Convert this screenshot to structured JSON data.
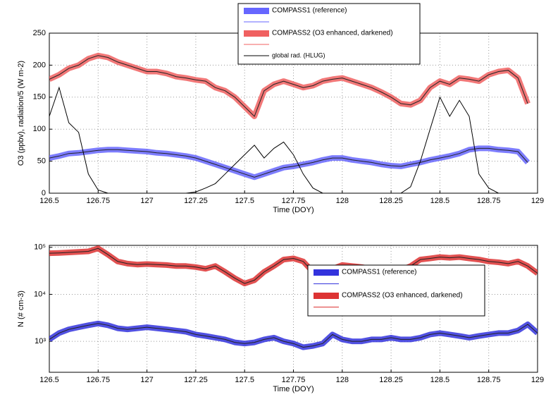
{
  "chart_data": [
    {
      "type": "line",
      "x_label": "Time (DOY)",
      "y_label": "O3 (ppbv), radiation/5 (W m-2)",
      "xlim": [
        126.5,
        129
      ],
      "xticks": [
        126.5,
        126.75,
        127,
        127.25,
        127.5,
        127.75,
        128,
        128.25,
        128.5,
        128.75,
        129
      ],
      "ylim": [
        0,
        250
      ],
      "yticks": [
        0,
        50,
        100,
        150,
        200,
        250
      ],
      "grid": true,
      "legend": "top-center",
      "x": [
        126.5,
        126.55,
        126.6,
        126.65,
        126.7,
        126.75,
        126.8,
        126.85,
        126.9,
        126.95,
        127,
        127.05,
        127.1,
        127.15,
        127.2,
        127.25,
        127.3,
        127.35,
        127.4,
        127.45,
        127.5,
        127.55,
        127.6,
        127.65,
        127.7,
        127.75,
        127.8,
        127.85,
        127.9,
        127.95,
        128,
        128.05,
        128.1,
        128.15,
        128.2,
        128.25,
        128.3,
        128.35,
        128.4,
        128.45,
        128.5,
        128.55,
        128.6,
        128.65,
        128.7,
        128.75,
        128.8,
        128.85,
        128.9,
        128.95
      ],
      "series": [
        {
          "name": "COMPASS1 (reference)",
          "color": "#6666ff",
          "style": "band",
          "values": [
            55,
            58,
            62,
            63,
            65,
            67,
            68,
            68,
            67,
            66,
            65,
            63,
            62,
            60,
            58,
            55,
            50,
            45,
            40,
            35,
            30,
            25,
            30,
            35,
            40,
            42,
            45,
            48,
            52,
            55,
            55,
            52,
            50,
            48,
            45,
            43,
            42,
            45,
            48,
            52,
            55,
            58,
            62,
            68,
            70,
            70,
            68,
            67,
            65,
            48
          ]
        },
        {
          "name": "COMPASS2 (O3 enhanced, darkened)",
          "color": "#f06060",
          "style": "band",
          "values": [
            178,
            185,
            195,
            200,
            210,
            215,
            212,
            205,
            200,
            195,
            190,
            190,
            187,
            182,
            180,
            177,
            175,
            165,
            160,
            150,
            135,
            120,
            160,
            170,
            175,
            170,
            165,
            168,
            175,
            178,
            180,
            175,
            170,
            165,
            158,
            150,
            140,
            138,
            145,
            165,
            175,
            170,
            180,
            178,
            175,
            185,
            190,
            192,
            180,
            140
          ]
        },
        {
          "name": "global rad. (HLUG)",
          "color": "#000000",
          "style": "line",
          "values": [
            120,
            165,
            110,
            95,
            30,
            5,
            0,
            0,
            0,
            0,
            0,
            0,
            0,
            0,
            0,
            2,
            8,
            15,
            30,
            45,
            60,
            75,
            55,
            70,
            80,
            60,
            30,
            8,
            0,
            0,
            0,
            0,
            0,
            0,
            0,
            0,
            0,
            10,
            50,
            100,
            150,
            120,
            145,
            120,
            30,
            8,
            0,
            0,
            0,
            0
          ]
        }
      ]
    },
    {
      "type": "line",
      "x_label": "Time (DOY)",
      "y_label": "N (# cm-3)",
      "xlim": [
        126.5,
        129
      ],
      "xticks": [
        126.5,
        126.75,
        127,
        127.25,
        127.5,
        127.75,
        128,
        128.25,
        128.5,
        128.75,
        129
      ],
      "ylim": [
        220,
        110000
      ],
      "yscale": "log",
      "yticks": [
        {
          "value": 1000,
          "label": "10³"
        },
        {
          "value": 10000,
          "label": "10⁴"
        },
        {
          "value": 100000,
          "label": "10⁵"
        }
      ],
      "grid": true,
      "legend": "center-right",
      "x": [
        126.5,
        126.55,
        126.6,
        126.65,
        126.7,
        126.75,
        126.8,
        126.85,
        126.9,
        126.95,
        127,
        127.05,
        127.1,
        127.15,
        127.2,
        127.25,
        127.3,
        127.35,
        127.4,
        127.45,
        127.5,
        127.55,
        127.6,
        127.65,
        127.7,
        127.75,
        127.8,
        127.85,
        127.9,
        127.95,
        128,
        128.05,
        128.1,
        128.15,
        128.2,
        128.25,
        128.3,
        128.35,
        128.4,
        128.45,
        128.5,
        128.55,
        128.6,
        128.65,
        128.7,
        128.75,
        128.8,
        128.85,
        128.9,
        128.95,
        129
      ],
      "series": [
        {
          "name": "COMPASS1 (reference)",
          "color": "#3333dd",
          "style": "band",
          "values": [
            1100,
            1500,
            1800,
            2000,
            2200,
            2400,
            2200,
            1900,
            1800,
            1900,
            2000,
            1900,
            1800,
            1700,
            1600,
            1400,
            1300,
            1200,
            1100,
            950,
            900,
            950,
            1100,
            1200,
            1000,
            900,
            750,
            800,
            900,
            1400,
            1100,
            1000,
            1000,
            1100,
            1100,
            1200,
            1100,
            1100,
            1200,
            1400,
            1500,
            1400,
            1300,
            1200,
            1300,
            1400,
            1500,
            1500,
            1700,
            2300,
            1500
          ]
        },
        {
          "name": "COMPASS2 (O3 enhanced, darkened)",
          "color": "#dd3333",
          "style": "band",
          "values": [
            75000,
            76000,
            78000,
            80000,
            82000,
            95000,
            70000,
            50000,
            45000,
            43000,
            44000,
            43000,
            42000,
            40000,
            40000,
            38000,
            35000,
            40000,
            30000,
            22000,
            17000,
            20000,
            30000,
            40000,
            55000,
            58000,
            50000,
            30000,
            25000,
            35000,
            42000,
            40000,
            38000,
            35000,
            33000,
            32000,
            33000,
            40000,
            55000,
            58000,
            62000,
            60000,
            62000,
            58000,
            55000,
            50000,
            48000,
            45000,
            50000,
            40000,
            28000
          ]
        }
      ]
    }
  ]
}
